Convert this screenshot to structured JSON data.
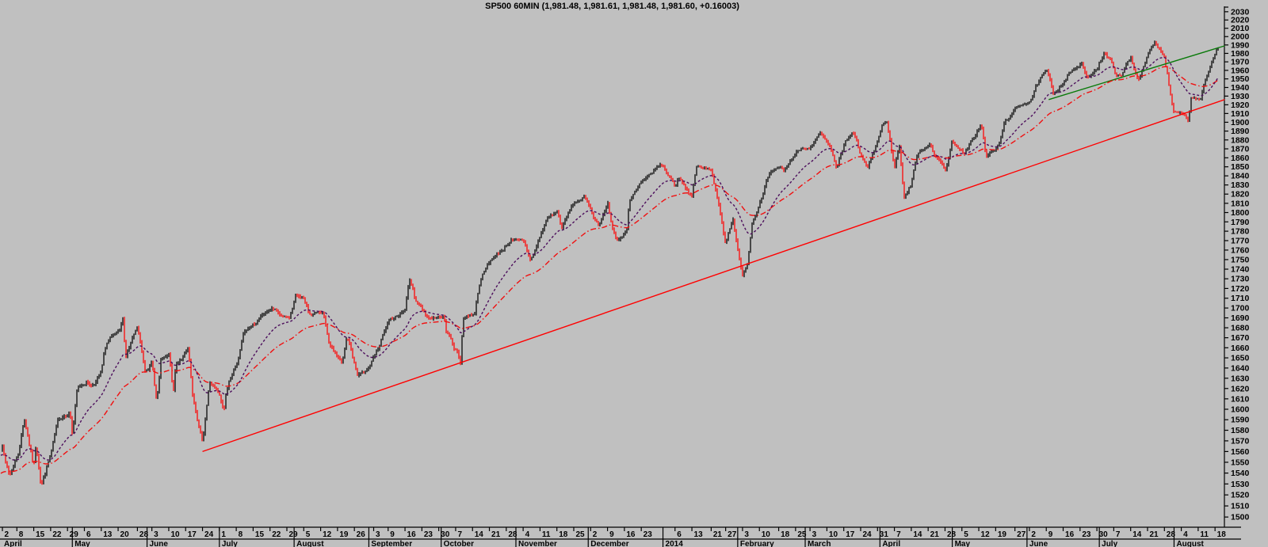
{
  "title": "SP500 60MIN (1,981.48, 1,981.61, 1,981.48, 1,981.60, +0.16003)",
  "quote": {
    "symbol": "SP500",
    "timeframe": "60MIN",
    "open": "1,981.48",
    "high": "1,981.61",
    "low": "1,981.48",
    "close": "1,981.60",
    "change": "+0.16003"
  },
  "colors": {
    "background": "#c0c0c0",
    "bar_up": "#000000",
    "bar_down": "#ff0000",
    "ma_short": "#4c0e5c",
    "ma_long": "#f01010",
    "trend_red": "#ff0000",
    "trend_green": "#0a7a0a",
    "axis": "#000000"
  },
  "chart_data": {
    "type": "line",
    "render_style": "60min-hlc-bars",
    "title": "SP500 60MIN (1,981.48, 1,981.61, 1,981.48, 1,981.60, +0.16003)",
    "y_axis": {
      "scale": "log",
      "min": 1500,
      "max": 2030,
      "step": 10,
      "side": "right",
      "labels": [
        2030,
        2020,
        2010,
        2000,
        1990,
        1980,
        1970,
        1960,
        1950,
        1940,
        1930,
        1920,
        1910,
        1900,
        1890,
        1880,
        1870,
        1860,
        1850,
        1840,
        1830,
        1820,
        1810,
        1800,
        1790,
        1780,
        1770,
        1760,
        1750,
        1740,
        1730,
        1720,
        1710,
        1700,
        1690,
        1680,
        1670,
        1660,
        1650,
        1640,
        1630,
        1620,
        1610,
        1600,
        1590,
        1580,
        1570,
        1560,
        1550,
        1540,
        1530,
        1520,
        1510,
        1500
      ]
    },
    "x_axis": {
      "start": "2013-04-01",
      "end": "2014-08-21",
      "months": [
        {
          "label": "April",
          "year": 2013,
          "month": 4,
          "tick_days": [
            2,
            8,
            15,
            22,
            29
          ]
        },
        {
          "label": "May",
          "year": 2013,
          "month": 5,
          "tick_days": [
            6,
            13,
            20,
            28
          ]
        },
        {
          "label": "June",
          "year": 2013,
          "month": 6,
          "tick_days": [
            3,
            10,
            17,
            24
          ]
        },
        {
          "label": "July",
          "year": 2013,
          "month": 7,
          "tick_days": [
            1,
            8,
            15,
            22,
            29
          ]
        },
        {
          "label": "August",
          "year": 2013,
          "month": 8,
          "tick_days": [
            5,
            12,
            19,
            26
          ]
        },
        {
          "label": "September",
          "year": 2013,
          "month": 9,
          "tick_days": [
            3,
            9,
            16,
            23,
            30
          ]
        },
        {
          "label": "October",
          "year": 2013,
          "month": 10,
          "tick_days": [
            7,
            14,
            21,
            28
          ]
        },
        {
          "label": "November",
          "year": 2013,
          "month": 11,
          "tick_days": [
            4,
            11,
            18,
            25
          ]
        },
        {
          "label": "December",
          "year": 2013,
          "month": 12,
          "tick_days": [
            2,
            9,
            16,
            23
          ]
        },
        {
          "label": "2014",
          "year": 2014,
          "month": 1,
          "tick_days": [
            6,
            13,
            21,
            27
          ]
        },
        {
          "label": "February",
          "year": 2014,
          "month": 2,
          "tick_days": [
            3,
            10,
            18,
            25
          ]
        },
        {
          "label": "March",
          "year": 2014,
          "month": 3,
          "tick_days": [
            3,
            10,
            17,
            24,
            31
          ]
        },
        {
          "label": "April",
          "year": 2014,
          "month": 4,
          "tick_days": [
            7,
            14,
            21,
            28
          ]
        },
        {
          "label": "May",
          "year": 2014,
          "month": 5,
          "tick_days": [
            5,
            12,
            19,
            27
          ]
        },
        {
          "label": "June",
          "year": 2014,
          "month": 6,
          "tick_days": [
            2,
            9,
            16,
            23,
            30
          ]
        },
        {
          "label": "July",
          "year": 2014,
          "month": 7,
          "tick_days": [
            7,
            14,
            21,
            28
          ]
        },
        {
          "label": "August",
          "year": 2014,
          "month": 8,
          "tick_days": [
            4,
            11,
            18
          ]
        }
      ]
    },
    "series": [
      {
        "name": "SP500 60min price",
        "anchors": [
          [
            "2013-04-01",
            1562
          ],
          [
            "2013-04-02",
            1571
          ],
          [
            "2013-04-03",
            1554
          ],
          [
            "2013-04-05",
            1540
          ],
          [
            "2013-04-09",
            1565
          ],
          [
            "2013-04-11",
            1597
          ],
          [
            "2013-04-12",
            1589
          ],
          [
            "2013-04-15",
            1552
          ],
          [
            "2013-04-16",
            1574
          ],
          [
            "2013-04-18",
            1536
          ],
          [
            "2013-04-22",
            1562
          ],
          [
            "2013-04-25",
            1585
          ],
          [
            "2013-04-30",
            1598
          ],
          [
            "2013-05-01",
            1578
          ],
          [
            "2013-05-03",
            1618
          ],
          [
            "2013-05-07",
            1626
          ],
          [
            "2013-05-09",
            1623
          ],
          [
            "2013-05-13",
            1636
          ],
          [
            "2013-05-15",
            1661
          ],
          [
            "2013-05-17",
            1667
          ],
          [
            "2013-05-21",
            1674
          ],
          [
            "2013-05-22",
            1687
          ],
          [
            "2013-05-23",
            1648
          ],
          [
            "2013-05-28",
            1674
          ],
          [
            "2013-05-31",
            1631
          ],
          [
            "2013-06-03",
            1642
          ],
          [
            "2013-06-05",
            1603
          ],
          [
            "2013-06-07",
            1645
          ],
          [
            "2013-06-10",
            1649
          ],
          [
            "2013-06-12",
            1610
          ],
          [
            "2013-06-13",
            1639
          ],
          [
            "2013-06-18",
            1654
          ],
          [
            "2013-06-20",
            1602
          ],
          [
            "2013-06-24",
            1560
          ],
          [
            "2013-06-27",
            1621
          ],
          [
            "2013-07-01",
            1615
          ],
          [
            "2013-07-03",
            1604
          ],
          [
            "2013-07-05",
            1632
          ],
          [
            "2013-07-09",
            1654
          ],
          [
            "2013-07-11",
            1675
          ],
          [
            "2013-07-15",
            1683
          ],
          [
            "2013-07-19",
            1692
          ],
          [
            "2013-07-23",
            1698
          ],
          [
            "2013-07-26",
            1690
          ],
          [
            "2013-07-30",
            1686
          ],
          [
            "2013-08-02",
            1709
          ],
          [
            "2013-08-05",
            1707
          ],
          [
            "2013-08-07",
            1690
          ],
          [
            "2013-08-09",
            1691
          ],
          [
            "2013-08-13",
            1694
          ],
          [
            "2013-08-15",
            1661
          ],
          [
            "2013-08-19",
            1646
          ],
          [
            "2013-08-21",
            1639
          ],
          [
            "2013-08-23",
            1664
          ],
          [
            "2013-08-27",
            1628
          ],
          [
            "2013-08-30",
            1633
          ],
          [
            "2013-09-05",
            1655
          ],
          [
            "2013-09-10",
            1684
          ],
          [
            "2013-09-16",
            1698
          ],
          [
            "2013-09-18",
            1729
          ],
          [
            "2013-09-20",
            1710
          ],
          [
            "2013-09-25",
            1693
          ],
          [
            "2013-09-27",
            1692
          ],
          [
            "2013-10-02",
            1694
          ],
          [
            "2013-10-03",
            1678
          ],
          [
            "2013-10-08",
            1655
          ],
          [
            "2013-10-09",
            1646
          ],
          [
            "2013-10-10",
            1693
          ],
          [
            "2013-10-15",
            1698
          ],
          [
            "2013-10-17",
            1733
          ],
          [
            "2013-10-22",
            1755
          ],
          [
            "2013-10-25",
            1760
          ],
          [
            "2013-10-30",
            1775
          ],
          [
            "2013-11-04",
            1768
          ],
          [
            "2013-11-07",
            1746
          ],
          [
            "2013-11-11",
            1772
          ],
          [
            "2013-11-14",
            1791
          ],
          [
            "2013-11-18",
            1798
          ],
          [
            "2013-11-20",
            1781
          ],
          [
            "2013-11-25",
            1805
          ],
          [
            "2013-11-29",
            1813
          ],
          [
            "2013-12-03",
            1795
          ],
          [
            "2013-12-05",
            1784
          ],
          [
            "2013-12-09",
            1811
          ],
          [
            "2013-12-11",
            1782
          ],
          [
            "2013-12-13",
            1772
          ],
          [
            "2013-12-17",
            1781
          ],
          [
            "2013-12-18",
            1810
          ],
          [
            "2013-12-23",
            1828
          ],
          [
            "2013-12-31",
            1849
          ],
          [
            "2014-01-06",
            1827
          ],
          [
            "2014-01-08",
            1838
          ],
          [
            "2014-01-13",
            1819
          ],
          [
            "2014-01-15",
            1850
          ],
          [
            "2014-01-21",
            1844
          ],
          [
            "2014-01-23",
            1826
          ],
          [
            "2014-01-27",
            1775
          ],
          [
            "2014-01-30",
            1794
          ],
          [
            "2014-02-03",
            1741
          ],
          [
            "2014-02-05",
            1752
          ],
          [
            "2014-02-07",
            1797
          ],
          [
            "2014-02-11",
            1820
          ],
          [
            "2014-02-14",
            1839
          ],
          [
            "2014-02-19",
            1847
          ],
          [
            "2014-02-20",
            1840
          ],
          [
            "2014-02-24",
            1858
          ],
          [
            "2014-02-27",
            1867
          ],
          [
            "2014-03-04",
            1874
          ],
          [
            "2014-03-07",
            1884
          ],
          [
            "2014-03-11",
            1867
          ],
          [
            "2014-03-14",
            1841
          ],
          [
            "2014-03-18",
            1872
          ],
          [
            "2014-03-21",
            1884
          ],
          [
            "2014-03-24",
            1857
          ],
          [
            "2014-03-27",
            1842
          ],
          [
            "2014-03-31",
            1872
          ],
          [
            "2014-04-02",
            1891
          ],
          [
            "2014-04-04",
            1897
          ],
          [
            "2014-04-07",
            1845
          ],
          [
            "2014-04-09",
            1872
          ],
          [
            "2014-04-11",
            1816
          ],
          [
            "2014-04-14",
            1831
          ],
          [
            "2014-04-16",
            1862
          ],
          [
            "2014-04-22",
            1880
          ],
          [
            "2014-04-25",
            1863
          ],
          [
            "2014-04-28",
            1850
          ],
          [
            "2014-05-01",
            1884
          ],
          [
            "2014-05-06",
            1868
          ],
          [
            "2014-05-09",
            1878
          ],
          [
            "2014-05-13",
            1902
          ],
          [
            "2014-05-15",
            1862
          ],
          [
            "2014-05-20",
            1872
          ],
          [
            "2014-05-23",
            1900
          ],
          [
            "2014-05-27",
            1911
          ],
          [
            "2014-06-02",
            1924
          ],
          [
            "2014-06-05",
            1940
          ],
          [
            "2014-06-09",
            1955
          ],
          [
            "2014-06-12",
            1926
          ],
          [
            "2014-06-18",
            1957
          ],
          [
            "2014-06-24",
            1968
          ],
          [
            "2014-06-26",
            1945
          ],
          [
            "2014-06-30",
            1962
          ],
          [
            "2014-07-03",
            1985
          ],
          [
            "2014-07-08",
            1959
          ],
          [
            "2014-07-10",
            1955
          ],
          [
            "2014-07-14",
            1977
          ],
          [
            "2014-07-17",
            1955
          ],
          [
            "2014-07-22",
            1984
          ],
          [
            "2014-07-24",
            1991
          ],
          [
            "2014-07-28",
            1978
          ],
          [
            "2014-07-31",
            1930
          ],
          [
            "2014-08-01",
            1916
          ],
          [
            "2014-08-05",
            1913
          ],
          [
            "2014-08-07",
            1904
          ],
          [
            "2014-08-08",
            1932
          ],
          [
            "2014-08-12",
            1928
          ],
          [
            "2014-08-14",
            1946
          ],
          [
            "2014-08-18",
            1971
          ],
          [
            "2014-08-19",
            1981.6
          ]
        ]
      }
    ],
    "overlays": [
      {
        "name": "ma-short",
        "style": "dashed",
        "color": "#4c0e5c"
      },
      {
        "name": "ma-long",
        "style": "dash-dot",
        "color": "#f01010"
      }
    ],
    "trendlines": [
      {
        "name": "red-support-trendline",
        "color": "#ff0000",
        "from": [
          "2013-06-24",
          1560
        ],
        "to": [
          "2014-08-22",
          1926
        ]
      },
      {
        "name": "green-trendline",
        "color": "#0a7a0a",
        "from": [
          "2014-06-10",
          1926
        ],
        "to": [
          "2014-08-22",
          1989
        ]
      }
    ],
    "legend": "none",
    "grid": false
  }
}
